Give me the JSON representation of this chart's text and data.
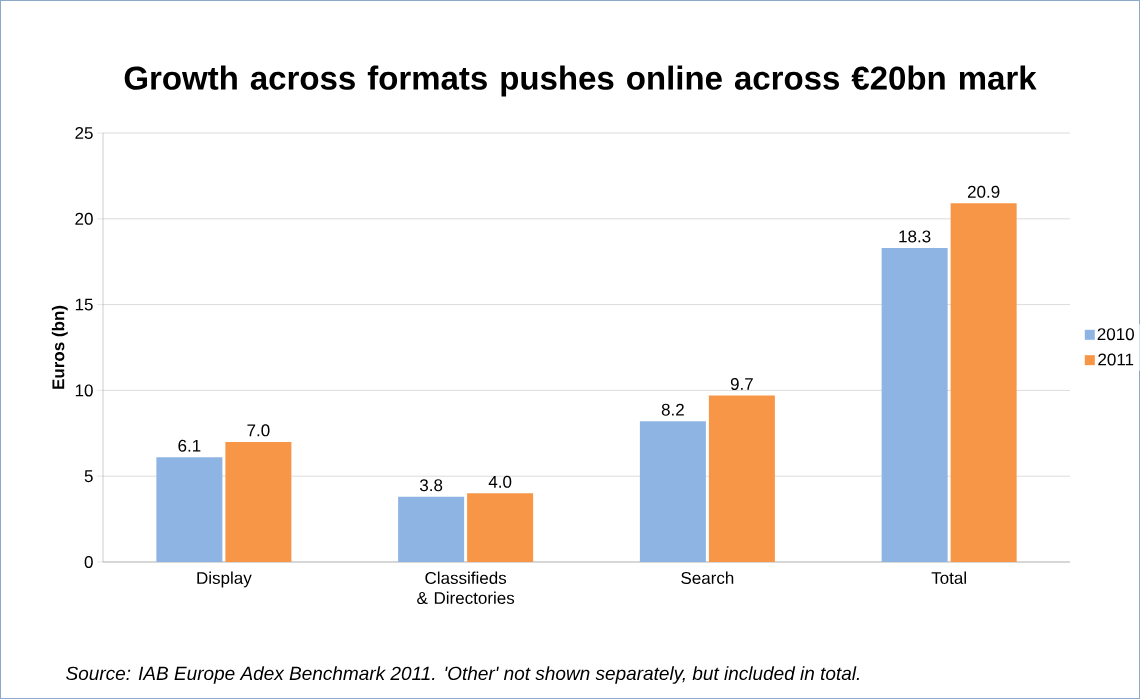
{
  "chart_data": {
    "type": "bar",
    "title": "Growth across formats pushes online across €20bn mark",
    "ylabel": "Euros (bn)",
    "categories": [
      "Display",
      "Classifieds & Directories",
      "Search",
      "Total"
    ],
    "series": [
      {
        "name": "2010",
        "color": "#8db4e2",
        "values": [
          6.1,
          3.8,
          8.2,
          18.3
        ],
        "value_labels": [
          "6.1",
          "3.8",
          "8.2",
          "18.3"
        ]
      },
      {
        "name": "2011",
        "color": "#f79646",
        "values": [
          7.0,
          4.0,
          9.7,
          20.9
        ],
        "value_labels": [
          "7.0",
          "4.0",
          "9.7",
          "20.9"
        ]
      }
    ],
    "ylim": [
      0,
      25
    ],
    "yticks": [
      0,
      5,
      10,
      15,
      20,
      25
    ],
    "grid": "y",
    "legend": "right",
    "annotations": [
      "Source: IAB Europe Adex Benchmark 2011. 'Other' not shown separately, but included in total."
    ]
  }
}
